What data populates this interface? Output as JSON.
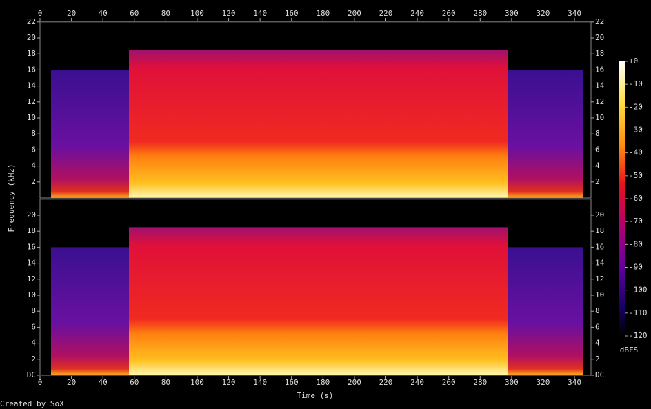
{
  "chart_data": {
    "type": "spectrogram",
    "x_label": "Time (s)",
    "y_label": "Frequency (kHz)",
    "colorbar_label": "dBFS",
    "credit": "Created by SoX",
    "xlim": [
      0,
      350.5
    ],
    "xticks": [
      0,
      20,
      40,
      60,
      80,
      100,
      120,
      140,
      160,
      180,
      200,
      220,
      240,
      260,
      280,
      300,
      320,
      340
    ],
    "channels": [
      {
        "ylim": [
          0,
          22
        ],
        "yticks": [
          2,
          4,
          6,
          8,
          10,
          12,
          14,
          16,
          18,
          20,
          22
        ]
      },
      {
        "ylim": [
          0,
          22
        ],
        "yticks": [
          {
            "value": 0,
            "label": "DC"
          },
          2,
          4,
          6,
          8,
          10,
          12,
          14,
          16,
          18,
          20
        ]
      }
    ],
    "colorbar": {
      "lim": [
        -120,
        0
      ],
      "ticks": [
        {
          "value": 0,
          "label": "+0"
        },
        -10,
        -20,
        -30,
        -40,
        -50,
        -60,
        -70,
        -80,
        -90,
        -100,
        -110,
        -120
      ]
    }
  }
}
